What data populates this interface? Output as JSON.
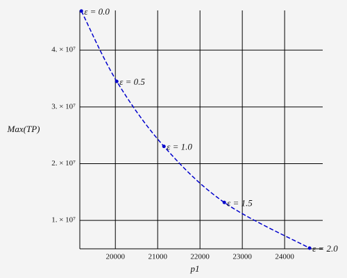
{
  "chart_data": {
    "type": "line",
    "x_label": "p1",
    "y_label": "Max(TP)",
    "xlim": [
      19160,
      24900
    ],
    "ylim": [
      5000000,
      47000000
    ],
    "xticks": [
      20000,
      21000,
      22000,
      23000,
      24000
    ],
    "yticks": [
      {
        "value": 10000000,
        "label": "1. × 10⁷"
      },
      {
        "value": 20000000,
        "label": "2. × 10⁷"
      },
      {
        "value": 30000000,
        "label": "3. × 10⁷"
      },
      {
        "value": 40000000,
        "label": "4. × 10⁷"
      }
    ],
    "grid": true,
    "series": [
      {
        "color": "#0000cc",
        "x": [
          19197,
          20033,
          21148,
          22574,
          24590
        ],
        "values": [
          46900000,
          34500000,
          23050000,
          13170000,
          5120000
        ],
        "point_labels": [
          "ε = 0.0",
          "ε = 0.5",
          "ε = 1.0",
          "ε = 1.5",
          "ε = 2.0"
        ]
      }
    ]
  }
}
